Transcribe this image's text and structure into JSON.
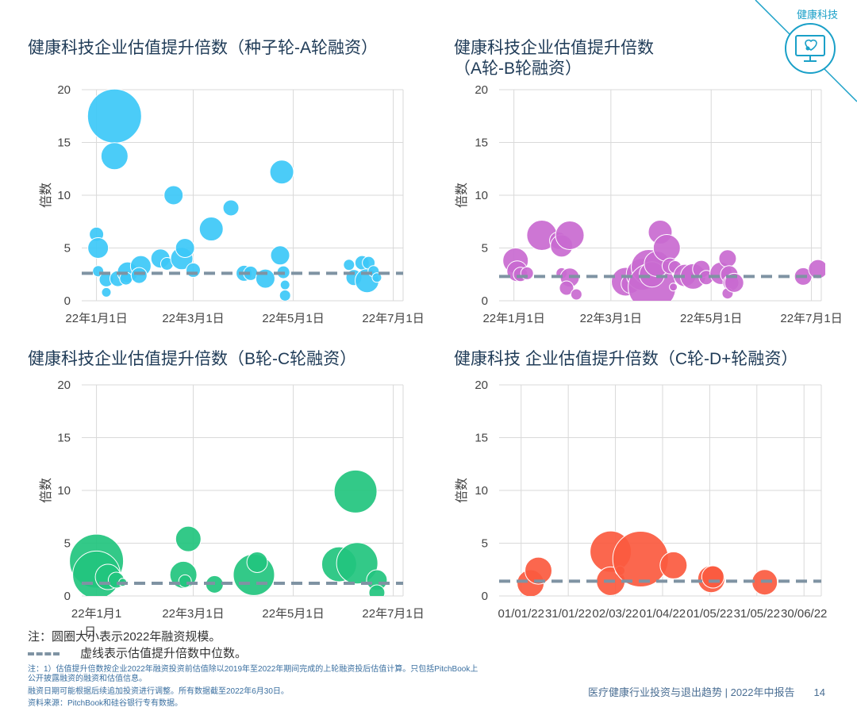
{
  "corner": {
    "label": "健康科技",
    "logo_icon": "monitor-heart-icon"
  },
  "colors": {
    "c1": "#3cc8f7",
    "c2": "#c96ad0",
    "c3": "#22c47e",
    "c4": "#fb5a3f",
    "median": "#7f93a3",
    "grid": "#d9d9d9",
    "axis_text": "#444444"
  },
  "chart_data": [
    {
      "type": "scatter",
      "title": "健康科技企业估值提升倍数（种子轮-A轮融资）",
      "ylabel": "倍数",
      "ylim": [
        0,
        20
      ],
      "yticks": [
        "0",
        "5",
        "10",
        "15",
        "20"
      ],
      "xlim": [
        "2021-12-23",
        "2022-07-07"
      ],
      "xticks": [
        {
          "x": "2022-01-01",
          "label": "22年1月1日"
        },
        {
          "x": "2022-03-01",
          "label": "22年3月1日"
        },
        {
          "x": "2022-05-01",
          "label": "22年5月1日"
        },
        {
          "x": "2022-07-01",
          "label": "22年7月1日"
        }
      ],
      "median": 2.6,
      "points": [
        {
          "x": "2022-01-12",
          "y": 17.5,
          "size": 34
        },
        {
          "x": "2022-01-12",
          "y": 13.7,
          "size": 17
        },
        {
          "x": "2022-01-01",
          "y": 6.3,
          "size": 9
        },
        {
          "x": "2022-01-02",
          "y": 5.0,
          "size": 13
        },
        {
          "x": "2022-01-02",
          "y": 2.8,
          "size": 7
        },
        {
          "x": "2022-01-07",
          "y": 2.0,
          "size": 9
        },
        {
          "x": "2022-01-07",
          "y": 0.8,
          "size": 6
        },
        {
          "x": "2022-01-14",
          "y": 2.1,
          "size": 10
        },
        {
          "x": "2022-01-20",
          "y": 2.7,
          "size": 13
        },
        {
          "x": "2022-01-19",
          "y": 2.1,
          "size": 8
        },
        {
          "x": "2022-01-28",
          "y": 3.3,
          "size": 13
        },
        {
          "x": "2022-01-27",
          "y": 2.4,
          "size": 10
        },
        {
          "x": "2022-02-09",
          "y": 4.0,
          "size": 12
        },
        {
          "x": "2022-02-13",
          "y": 3.5,
          "size": 8
        },
        {
          "x": "2022-02-17",
          "y": 10.0,
          "size": 12
        },
        {
          "x": "2022-02-22",
          "y": 4.0,
          "size": 14
        },
        {
          "x": "2022-02-24",
          "y": 5.0,
          "size": 12
        },
        {
          "x": "2022-03-12",
          "y": 6.8,
          "size": 15
        },
        {
          "x": "2022-03-01",
          "y": 2.9,
          "size": 9
        },
        {
          "x": "2022-03-24",
          "y": 8.8,
          "size": 10
        },
        {
          "x": "2022-04-01",
          "y": 2.6,
          "size": 10
        },
        {
          "x": "2022-04-05",
          "y": 2.6,
          "size": 9
        },
        {
          "x": "2022-04-14",
          "y": 2.1,
          "size": 12
        },
        {
          "x": "2022-04-24",
          "y": 12.2,
          "size": 15
        },
        {
          "x": "2022-04-23",
          "y": 4.3,
          "size": 12
        },
        {
          "x": "2022-04-25",
          "y": 2.7,
          "size": 8
        },
        {
          "x": "2022-04-26",
          "y": 1.5,
          "size": 6
        },
        {
          "x": "2022-04-26",
          "y": 0.5,
          "size": 7
        },
        {
          "x": "2022-06-04",
          "y": 3.4,
          "size": 7
        },
        {
          "x": "2022-06-07",
          "y": 2.2,
          "size": 10
        },
        {
          "x": "2022-06-12",
          "y": 3.6,
          "size": 9
        },
        {
          "x": "2022-06-15",
          "y": 1.9,
          "size": 15
        },
        {
          "x": "2022-06-16",
          "y": 3.6,
          "size": 8
        },
        {
          "x": "2022-06-19",
          "y": 2.8,
          "size": 7
        },
        {
          "x": "2022-06-21",
          "y": 2.2,
          "size": 6
        }
      ]
    },
    {
      "type": "scatter",
      "title": "健康科技企业估值提升倍数\n（A轮-B轮融资）",
      "ylabel": "倍数",
      "ylim": [
        0,
        20
      ],
      "yticks": [
        "0",
        "5",
        "10",
        "15",
        "20"
      ],
      "xlim": [
        "2021-12-23",
        "2022-07-07"
      ],
      "xticks": [
        {
          "x": "2022-01-01",
          "label": "22年1月1日"
        },
        {
          "x": "2022-03-01",
          "label": "22年3月1日"
        },
        {
          "x": "2022-05-01",
          "label": "22年5月1日"
        },
        {
          "x": "2022-07-01",
          "label": "22年7月1日"
        }
      ],
      "median": 2.3,
      "points": [
        {
          "x": "2022-01-02",
          "y": 3.8,
          "size": 16
        },
        {
          "x": "2022-01-03",
          "y": 2.8,
          "size": 13
        },
        {
          "x": "2022-01-05",
          "y": 2.5,
          "size": 9
        },
        {
          "x": "2022-01-09",
          "y": 2.6,
          "size": 8
        },
        {
          "x": "2022-01-18",
          "y": 6.2,
          "size": 19
        },
        {
          "x": "2022-01-28",
          "y": 5.7,
          "size": 11
        },
        {
          "x": "2022-01-30",
          "y": 5.2,
          "size": 14
        },
        {
          "x": "2022-02-04",
          "y": 6.2,
          "size": 18
        },
        {
          "x": "2022-01-30",
          "y": 2.6,
          "size": 7
        },
        {
          "x": "2022-02-04",
          "y": 2.2,
          "size": 12
        },
        {
          "x": "2022-02-02",
          "y": 1.2,
          "size": 9
        },
        {
          "x": "2022-02-08",
          "y": 0.6,
          "size": 7
        },
        {
          "x": "2022-03-10",
          "y": 1.8,
          "size": 18
        },
        {
          "x": "2022-03-13",
          "y": 1.6,
          "size": 12
        },
        {
          "x": "2022-03-20",
          "y": 2.5,
          "size": 20
        },
        {
          "x": "2022-03-24",
          "y": 3.2,
          "size": 22
        },
        {
          "x": "2022-03-26",
          "y": 1.3,
          "size": 30
        },
        {
          "x": "2022-03-26",
          "y": 2.5,
          "size": 16
        },
        {
          "x": "2022-03-29",
          "y": 3.5,
          "size": 16
        },
        {
          "x": "2022-03-31",
          "y": 6.5,
          "size": 15
        },
        {
          "x": "2022-04-04",
          "y": 5.0,
          "size": 17
        },
        {
          "x": "2022-04-06",
          "y": 3.3,
          "size": 10
        },
        {
          "x": "2022-04-09",
          "y": 3.2,
          "size": 8
        },
        {
          "x": "2022-04-08",
          "y": 1.3,
          "size": 5
        },
        {
          "x": "2022-04-15",
          "y": 2.4,
          "size": 14
        },
        {
          "x": "2022-04-20",
          "y": 2.3,
          "size": 16
        },
        {
          "x": "2022-04-25",
          "y": 3.0,
          "size": 11
        },
        {
          "x": "2022-04-28",
          "y": 2.2,
          "size": 9
        },
        {
          "x": "2022-05-07",
          "y": 2.6,
          "size": 14
        },
        {
          "x": "2022-05-11",
          "y": 4.0,
          "size": 11
        },
        {
          "x": "2022-05-12",
          "y": 2.5,
          "size": 11
        },
        {
          "x": "2022-05-13",
          "y": 1.7,
          "size": 10
        },
        {
          "x": "2022-05-11",
          "y": 0.7,
          "size": 7
        },
        {
          "x": "2022-05-15",
          "y": 1.7,
          "size": 12
        },
        {
          "x": "2022-06-26",
          "y": 2.3,
          "size": 11
        },
        {
          "x": "2022-07-05",
          "y": 3.0,
          "size": 12
        }
      ]
    },
    {
      "type": "scatter",
      "title": "健康科技企业估值提升倍数（B轮-C轮融资）",
      "ylabel": "倍数",
      "ylim": [
        0,
        20
      ],
      "yticks": [
        "0",
        "5",
        "10",
        "15",
        "20"
      ],
      "xlim": [
        "2021-12-23",
        "2022-07-07"
      ],
      "xticks": [
        {
          "x": "2022-01-01",
          "label": "22年1月1"
        },
        {
          "x": "2022-03-01",
          "label": "22年3月1日"
        },
        {
          "x": "2022-05-01",
          "label": "22年5月1日"
        },
        {
          "x": "2022-07-01",
          "label": "22年7月1日"
        }
      ],
      "extra_tick_text": "日",
      "median": 1.2,
      "points": [
        {
          "x": "2022-01-01",
          "y": 3.3,
          "size": 34
        },
        {
          "x": "2022-01-01",
          "y": 2.0,
          "size": 30
        },
        {
          "x": "2022-01-08",
          "y": 1.8,
          "size": 16
        },
        {
          "x": "2022-01-13",
          "y": 1.5,
          "size": 10
        },
        {
          "x": "2022-01-17",
          "y": 1.3,
          "size": 5
        },
        {
          "x": "2022-02-23",
          "y": 2.0,
          "size": 17
        },
        {
          "x": "2022-02-26",
          "y": 5.4,
          "size": 16
        },
        {
          "x": "2022-02-24",
          "y": 1.4,
          "size": 8
        },
        {
          "x": "2022-03-14",
          "y": 1.1,
          "size": 11
        },
        {
          "x": "2022-04-07",
          "y": 2.0,
          "size": 26
        },
        {
          "x": "2022-04-09",
          "y": 3.2,
          "size": 13
        },
        {
          "x": "2022-05-29",
          "y": 3.0,
          "size": 22
        },
        {
          "x": "2022-06-08",
          "y": 9.9,
          "size": 27
        },
        {
          "x": "2022-06-09",
          "y": 3.1,
          "size": 26
        },
        {
          "x": "2022-06-21",
          "y": 1.5,
          "size": 13
        },
        {
          "x": "2022-06-21",
          "y": 0.3,
          "size": 10
        }
      ]
    },
    {
      "type": "scatter",
      "title": "健康科技 企业估值提升倍数（C轮-D+轮融资）",
      "ylabel": "倍数",
      "ylim": [
        0,
        20
      ],
      "yticks": [
        "0",
        "5",
        "10",
        "15",
        "20"
      ],
      "xlim": [
        "2021-12-18",
        "2022-07-11"
      ],
      "xticks": [
        {
          "x": "2022-01-01",
          "label": "01/01/22"
        },
        {
          "x": "2022-01-31",
          "label": "31/01/22"
        },
        {
          "x": "2022-03-02",
          "label": "02/03/22"
        },
        {
          "x": "2022-04-01",
          "label": "01/04/22"
        },
        {
          "x": "2022-05-01",
          "label": "01/05/22"
        },
        {
          "x": "2022-05-31",
          "label": "31/05/22"
        },
        {
          "x": "2022-06-30",
          "label": "30/06/22"
        }
      ],
      "median": 1.4,
      "points": [
        {
          "x": "2022-01-07",
          "y": 1.2,
          "size": 17
        },
        {
          "x": "2022-01-12",
          "y": 2.4,
          "size": 17
        },
        {
          "x": "2022-02-27",
          "y": 4.2,
          "size": 26
        },
        {
          "x": "2022-02-27",
          "y": 1.4,
          "size": 18
        },
        {
          "x": "2022-03-05",
          "y": 2.4,
          "size": 6
        },
        {
          "x": "2022-03-18",
          "y": 3.5,
          "size": 35
        },
        {
          "x": "2022-04-08",
          "y": 2.9,
          "size": 17
        },
        {
          "x": "2022-05-02",
          "y": 1.6,
          "size": 17
        },
        {
          "x": "2022-05-03",
          "y": 1.8,
          "size": 14
        },
        {
          "x": "2022-06-05",
          "y": 1.3,
          "size": 16
        }
      ]
    }
  ],
  "notes": {
    "bubble": "注：圆圈大小表示2022年融资规模。",
    "dashed": "虚线表示估值提升倍数中位数。"
  },
  "footnotes": [
    "注：1）估值提升倍数按企业2022年融资投资前估值除以2019年至2022年期间完成的上轮融资投后估值计算。只包括PitchBook上",
    "公开披露融资的融资和估值信息。",
    "融资日期可能根据后续追加投资进行调整。所有数据截至2022年6月30日。",
    "资料来源：PitchBook和硅谷银行专有数据。"
  ],
  "report": {
    "title": "医疗健康行业投资与退出趋势 | 2022年中报告",
    "page": "14"
  }
}
